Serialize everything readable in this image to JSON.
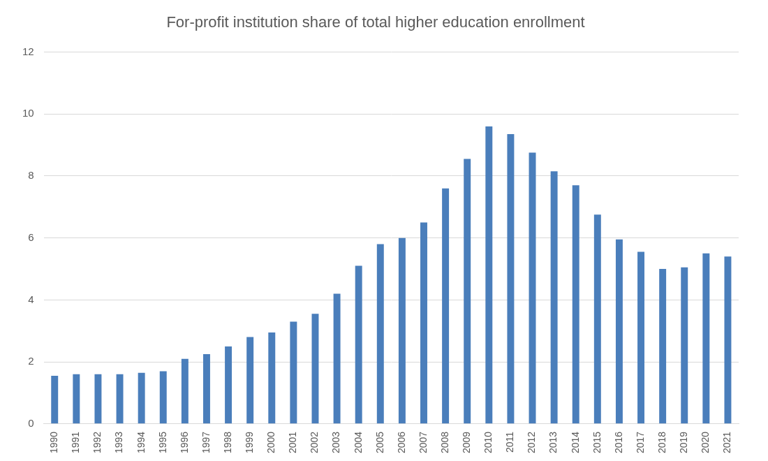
{
  "chart_data": {
    "type": "bar",
    "title": "For-profit institution share of total higher education enrollment",
    "categories": [
      "1990",
      "1991",
      "1992",
      "1993",
      "1994",
      "1995",
      "1996",
      "1997",
      "1998",
      "1999",
      "2000",
      "2001",
      "2002",
      "2003",
      "2004",
      "2005",
      "2006",
      "2007",
      "2008",
      "2009",
      "2010",
      "2011",
      "2012",
      "2013",
      "2014",
      "2015",
      "2016",
      "2017",
      "2018",
      "2019",
      "2020",
      "2021"
    ],
    "values": [
      1.55,
      1.6,
      1.6,
      1.6,
      1.65,
      1.7,
      2.1,
      2.25,
      2.5,
      2.8,
      2.95,
      3.3,
      3.55,
      4.2,
      5.1,
      5.8,
      6.0,
      6.5,
      7.6,
      8.55,
      9.6,
      9.35,
      8.75,
      8.15,
      7.7,
      6.75,
      5.95,
      5.55,
      5.0,
      5.05,
      5.5,
      5.4
    ],
    "color": "#4a7ebb",
    "ylim": [
      0,
      12
    ],
    "yticks": [
      0,
      2,
      4,
      6,
      8,
      10,
      12
    ],
    "grid": true
  }
}
